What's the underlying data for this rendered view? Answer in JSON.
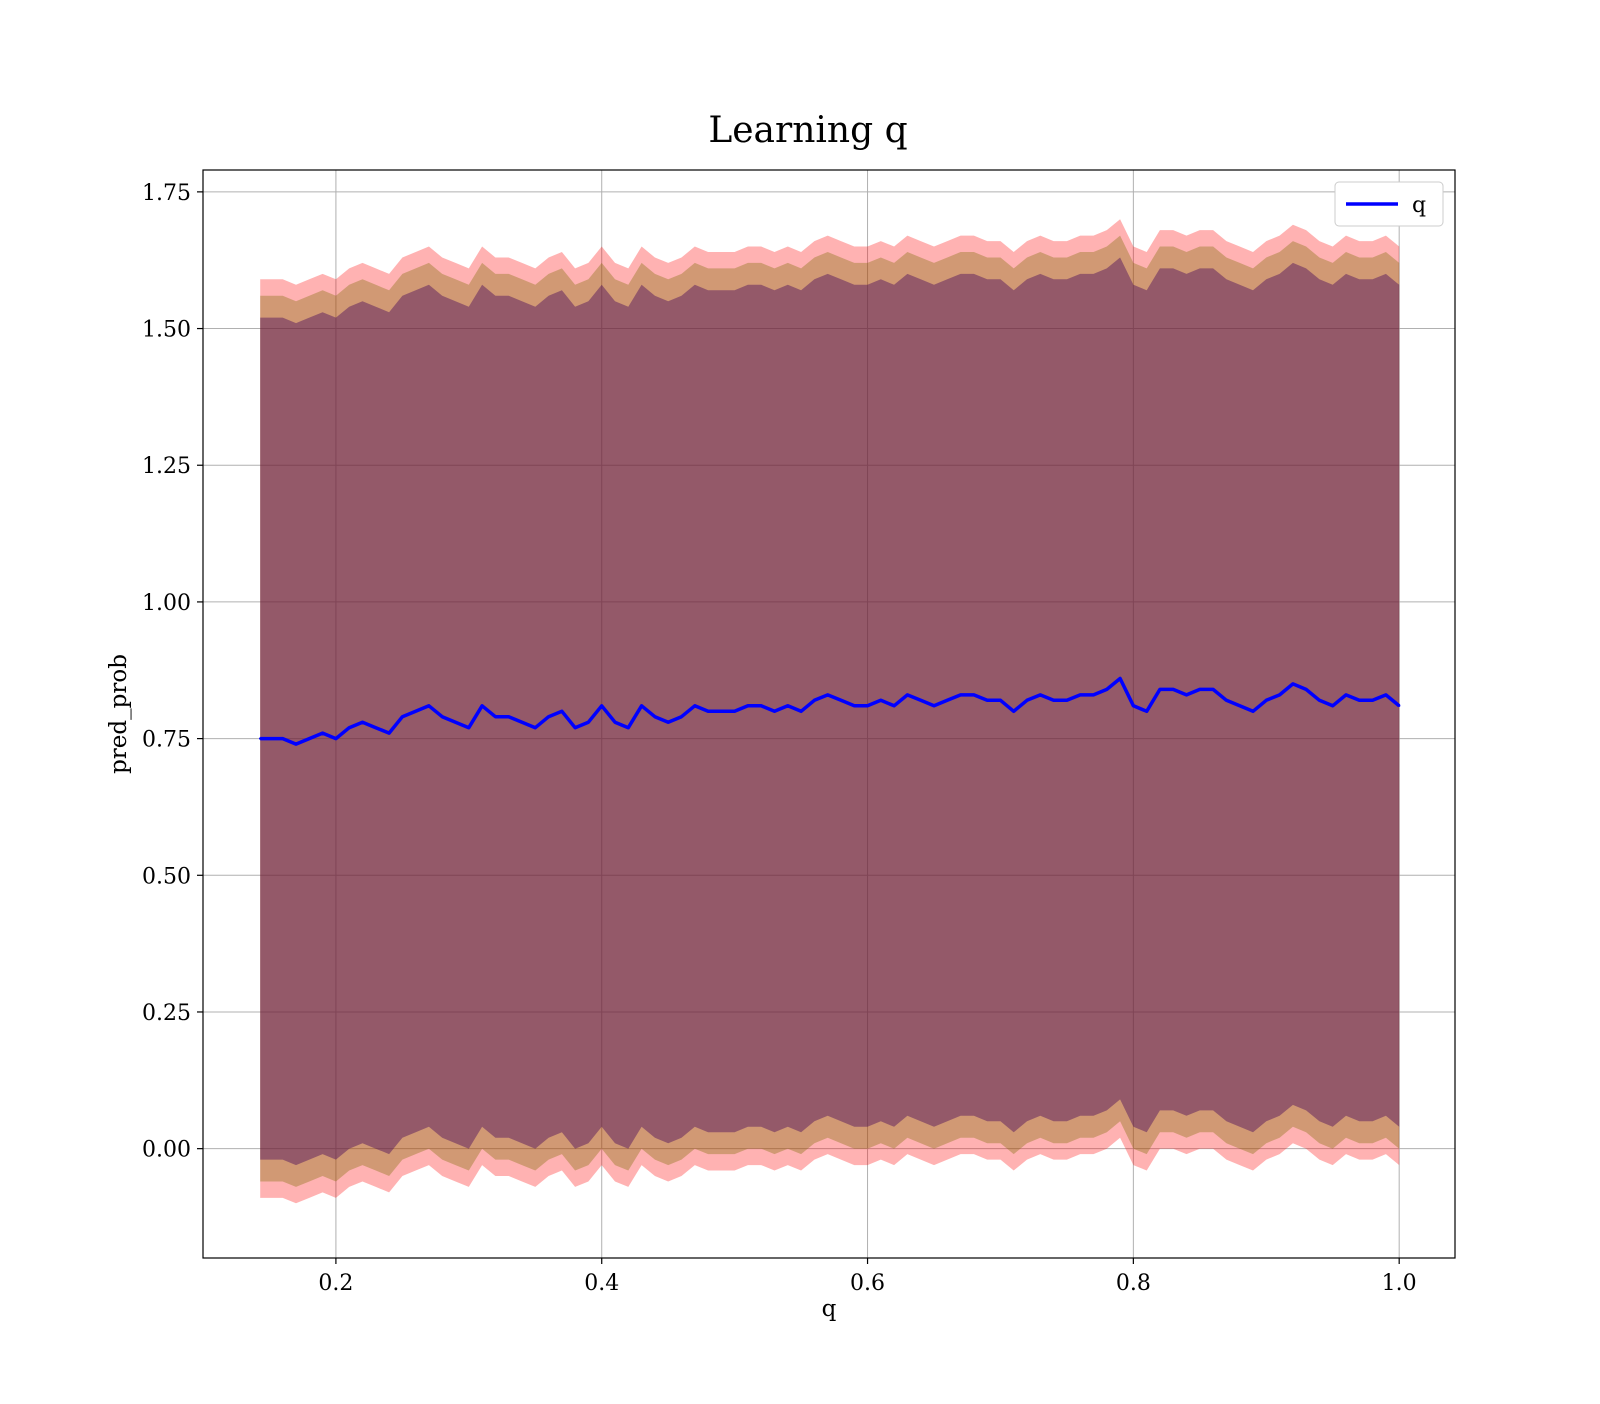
{
  "chart_data": {
    "type": "line",
    "title": "Learning q",
    "xlabel": "q",
    "ylabel": "pred_prob",
    "xlim": [
      0.1,
      1.042
    ],
    "ylim": [
      -0.2,
      1.79
    ],
    "xticks": [
      0.2,
      0.4,
      0.6,
      0.8,
      1.0
    ],
    "xtick_labels": [
      "0.2",
      "0.4",
      "0.6",
      "0.8",
      "1.0"
    ],
    "yticks": [
      0.0,
      0.25,
      0.5,
      0.75,
      1.0,
      1.25,
      1.5,
      1.75
    ],
    "ytick_labels": [
      "0.00",
      "0.25",
      "0.50",
      "0.75",
      "1.00",
      "1.25",
      "1.50",
      "1.75"
    ],
    "grid": true,
    "legend": {
      "position": "upper right",
      "entries": [
        "q"
      ]
    },
    "series": [
      {
        "name": "q",
        "color": "#0000ff",
        "x": [
          0.143,
          0.16,
          0.17,
          0.18,
          0.19,
          0.2,
          0.21,
          0.22,
          0.23,
          0.24,
          0.25,
          0.26,
          0.27,
          0.28,
          0.29,
          0.3,
          0.31,
          0.32,
          0.33,
          0.34,
          0.35,
          0.36,
          0.37,
          0.38,
          0.39,
          0.4,
          0.41,
          0.42,
          0.43,
          0.44,
          0.45,
          0.46,
          0.47,
          0.48,
          0.49,
          0.5,
          0.51,
          0.52,
          0.53,
          0.54,
          0.55,
          0.56,
          0.57,
          0.58,
          0.59,
          0.6,
          0.61,
          0.62,
          0.63,
          0.64,
          0.65,
          0.66,
          0.67,
          0.68,
          0.69,
          0.7,
          0.71,
          0.72,
          0.73,
          0.74,
          0.75,
          0.76,
          0.77,
          0.78,
          0.79,
          0.8,
          0.81,
          0.82,
          0.83,
          0.84,
          0.85,
          0.86,
          0.87,
          0.88,
          0.89,
          0.9,
          0.91,
          0.92,
          0.93,
          0.94,
          0.95,
          0.96,
          0.97,
          0.98,
          0.99,
          1.0
        ],
        "values": [
          0.75,
          0.75,
          0.74,
          0.75,
          0.76,
          0.75,
          0.77,
          0.78,
          0.77,
          0.76,
          0.79,
          0.8,
          0.81,
          0.79,
          0.78,
          0.77,
          0.81,
          0.79,
          0.79,
          0.78,
          0.77,
          0.79,
          0.8,
          0.77,
          0.78,
          0.81,
          0.78,
          0.77,
          0.81,
          0.79,
          0.78,
          0.79,
          0.81,
          0.8,
          0.8,
          0.8,
          0.81,
          0.81,
          0.8,
          0.81,
          0.8,
          0.82,
          0.83,
          0.82,
          0.81,
          0.81,
          0.82,
          0.81,
          0.83,
          0.82,
          0.81,
          0.82,
          0.83,
          0.83,
          0.82,
          0.82,
          0.8,
          0.82,
          0.83,
          0.82,
          0.82,
          0.83,
          0.83,
          0.84,
          0.86,
          0.81,
          0.8,
          0.84,
          0.84,
          0.83,
          0.84,
          0.84,
          0.82,
          0.81,
          0.8,
          0.82,
          0.83,
          0.85,
          0.84,
          0.82,
          0.81,
          0.83,
          0.82,
          0.82,
          0.83,
          0.81
        ]
      }
    ],
    "bands": [
      {
        "color": "#ff0000",
        "opacity": 0.3,
        "lower_offset": 0.84,
        "upper_offset": 0.84
      },
      {
        "color": "#7a6900",
        "opacity": 0.35,
        "lower_offset": 0.81,
        "upper_offset": 0.81
      },
      {
        "color": "#4a0a5e",
        "opacity": 0.45,
        "lower_offset": 0.77,
        "upper_offset": 0.77
      }
    ]
  }
}
